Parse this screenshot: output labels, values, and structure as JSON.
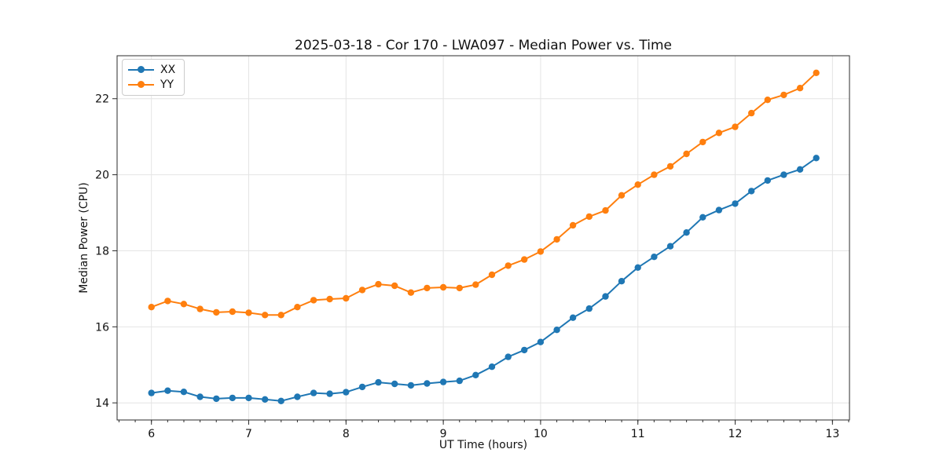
{
  "chart_data": {
    "type": "line",
    "title": "2025-03-18 - Cor 170 - LWA097 - Median Power vs. Time",
    "xlabel": "UT Time (hours)",
    "ylabel": "Median Power (CPU)",
    "xlim": [
      5.647,
      13.175
    ],
    "ylim": [
      13.55,
      23.13
    ],
    "x_ticks": [
      6,
      7,
      8,
      9,
      10,
      11,
      12,
      13
    ],
    "y_ticks": [
      14,
      16,
      18,
      20,
      22
    ],
    "x_minor_step": 0.166667,
    "grid": true,
    "grid_color": "#e4e4e4",
    "spine_color": "#2b2b2b",
    "text_color": "#111111",
    "legend_position": "upper-left",
    "x": [
      6.0,
      6.167,
      6.333,
      6.5,
      6.667,
      6.833,
      7.0,
      7.167,
      7.333,
      7.5,
      7.667,
      7.833,
      8.0,
      8.167,
      8.333,
      8.5,
      8.667,
      8.833,
      9.0,
      9.167,
      9.333,
      9.5,
      9.667,
      9.833,
      10.0,
      10.167,
      10.333,
      10.5,
      10.667,
      10.833,
      11.0,
      11.167,
      11.333,
      11.5,
      11.667,
      11.833,
      12.0,
      12.167,
      12.333,
      12.5,
      12.667,
      12.833
    ],
    "series": [
      {
        "name": "XX",
        "color": "#1f77b4",
        "values": [
          14.26,
          14.32,
          14.29,
          14.16,
          14.11,
          14.13,
          14.13,
          14.09,
          14.05,
          14.16,
          14.26,
          14.24,
          14.28,
          14.42,
          14.54,
          14.5,
          14.46,
          14.51,
          14.55,
          14.58,
          14.73,
          14.95,
          15.21,
          15.39,
          15.6,
          15.92,
          16.24,
          16.48,
          16.8,
          17.2,
          17.56,
          17.84,
          18.12,
          18.48,
          18.88,
          19.07,
          19.24,
          19.57,
          19.85,
          20.0,
          20.14,
          20.44
        ]
      },
      {
        "name": "YY",
        "color": "#ff7f0e",
        "values": [
          16.52,
          16.68,
          16.6,
          16.47,
          16.38,
          16.4,
          16.37,
          16.31,
          16.31,
          16.52,
          16.7,
          16.73,
          16.75,
          16.97,
          17.12,
          17.08,
          16.9,
          17.02,
          17.04,
          17.02,
          17.11,
          17.37,
          17.61,
          17.77,
          17.98,
          18.3,
          18.67,
          18.9,
          19.06,
          19.46,
          19.74,
          20.0,
          20.22,
          20.55,
          20.86,
          21.1,
          21.26,
          21.62,
          21.97,
          22.1,
          22.28,
          22.68
        ]
      }
    ]
  }
}
